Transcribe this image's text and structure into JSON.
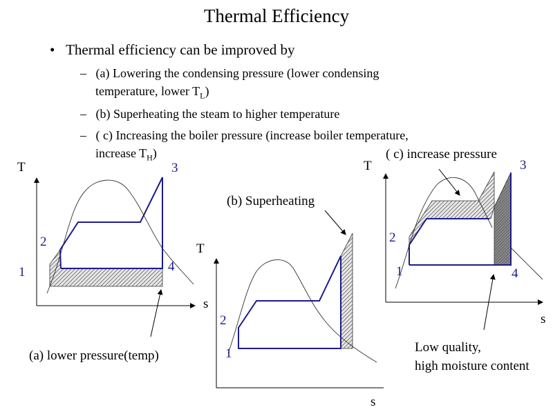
{
  "title": "Thermal Efficiency",
  "bullet": "Thermal efficiency can be improved by",
  "subbullets": [
    {
      "line1": "(a) Lowering the condensing pressure (lower condensing",
      "line2": "temperature, lower T",
      "sub2": "L",
      "end2": ")"
    },
    {
      "line1": "(b) Superheating the steam to higher temperature"
    },
    {
      "line1": "( c) Increasing the boiler pressure (increase boiler temperature,",
      "line2": "increase T",
      "sub2": "H",
      "end2": ")"
    }
  ],
  "diagrams": {
    "a": {
      "y_axis": "T",
      "x_axis": "s",
      "points": [
        "1",
        "2",
        "3",
        "4"
      ],
      "caption": "(a) lower pressure(temp)"
    },
    "b": {
      "y_axis": "T",
      "x_axis": "s",
      "points": [
        "1",
        "2"
      ],
      "caption": "(b) Superheating"
    },
    "c": {
      "y_axis": "T",
      "x_axis": "s",
      "points": [
        "1",
        "2",
        "3",
        "4"
      ],
      "caption": "( c) increase pressure",
      "note1": "Low quality,",
      "note2": "high moisture content"
    }
  },
  "colors": {
    "cycle": "#1a1a8c",
    "hatch": "#555555",
    "dark_region": "#777777"
  }
}
